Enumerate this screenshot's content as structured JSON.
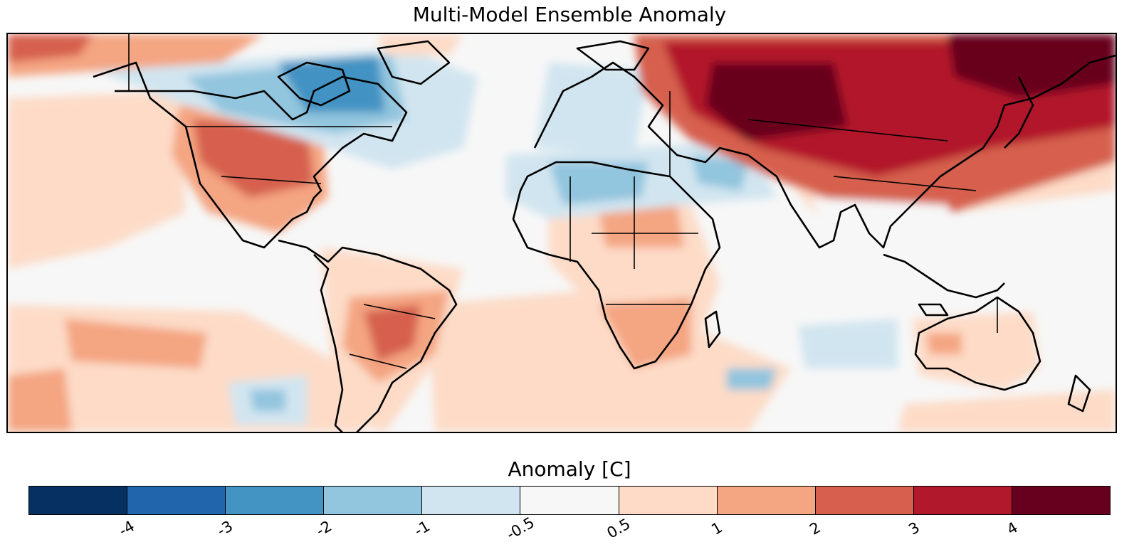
{
  "title": "Multi-Model Ensemble Anomaly",
  "map": {
    "projection": "equirectangular",
    "central_longitude": 0,
    "layers": [
      "temperature-anomaly-raster",
      "coastlines",
      "country-borders"
    ],
    "ocean_color": "#f7f7f7",
    "coastline_color": "#000000"
  },
  "colorbar": {
    "label": "Anomaly [C]",
    "orientation": "horizontal",
    "colormap": "RdBu_r",
    "tick_labels": [
      "-4",
      "-3",
      "-2",
      "-1",
      "-0.5",
      "0.5",
      "1",
      "2",
      "3",
      "4"
    ],
    "bins": [
      {
        "range": "< -4",
        "color": "#053061"
      },
      {
        "range": "-4 to -3",
        "color": "#2166ac"
      },
      {
        "range": "-3 to -2",
        "color": "#4393c3"
      },
      {
        "range": "-2 to -1",
        "color": "#92c5de"
      },
      {
        "range": "-1 to -0.5",
        "color": "#d1e5f0"
      },
      {
        "range": "-0.5 to 0.5",
        "color": "#f7f7f7"
      },
      {
        "range": "0.5 to 1",
        "color": "#fddbc7"
      },
      {
        "range": "1 to 2",
        "color": "#f4a582"
      },
      {
        "range": "2 to 3",
        "color": "#d6604d"
      },
      {
        "range": "3 to 4",
        "color": "#b2182b"
      },
      {
        "range": "> 4",
        "color": "#67001f"
      }
    ]
  }
}
